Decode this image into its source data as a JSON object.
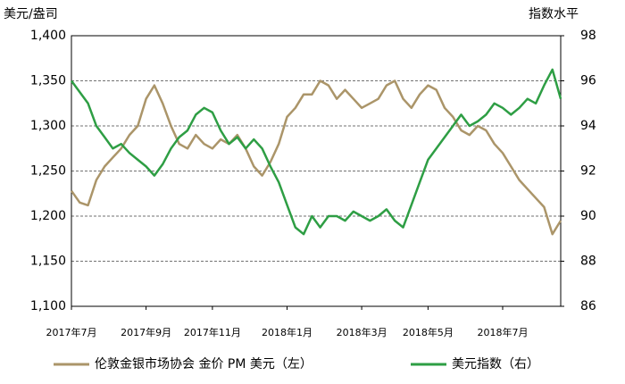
{
  "chart_data": {
    "type": "line",
    "y_label": "美元/盎司",
    "y2_label": "指数水平",
    "categories": [
      "2017年7月",
      null,
      null,
      null,
      null,
      null,
      null,
      null,
      null,
      "2017年9月",
      null,
      null,
      null,
      null,
      null,
      null,
      null,
      "2017年11月",
      null,
      null,
      null,
      null,
      null,
      null,
      null,
      null,
      "2018年1月",
      null,
      null,
      null,
      null,
      null,
      null,
      null,
      null,
      "2018年3月",
      null,
      null,
      null,
      null,
      null,
      null,
      null,
      "2018年5月",
      null,
      null,
      null,
      null,
      null,
      null,
      null,
      null,
      "2018年7月",
      null,
      null,
      null,
      null,
      null,
      null,
      null
    ],
    "series": [
      {
        "name": "伦敦金银市场协会 金价 PM 美元（左）",
        "color": "#ab9569",
        "axis": "y",
        "values": [
          1228,
          1215,
          1212,
          1240,
          1255,
          1265,
          1275,
          1290,
          1300,
          1330,
          1345,
          1325,
          1300,
          1280,
          1275,
          1290,
          1280,
          1275,
          1285,
          1280,
          1290,
          1275,
          1255,
          1245,
          1260,
          1280,
          1310,
          1320,
          1335,
          1335,
          1350,
          1345,
          1330,
          1340,
          1330,
          1320,
          1325,
          1330,
          1345,
          1350,
          1330,
          1320,
          1335,
          1345,
          1340,
          1320,
          1310,
          1295,
          1290,
          1300,
          1295,
          1280,
          1270,
          1255,
          1240,
          1230,
          1220,
          1210,
          1180,
          1195
        ]
      },
      {
        "name": "美元指数（右）",
        "color": "#2e9e44",
        "axis": "y2",
        "values": [
          96,
          95.5,
          95,
          94,
          93.5,
          93,
          93.2,
          92.8,
          92.5,
          92.2,
          91.8,
          92.3,
          93,
          93.5,
          93.8,
          94.5,
          94.8,
          94.6,
          93.8,
          93.2,
          93.5,
          93.0,
          93.4,
          93.0,
          92.2,
          91.5,
          90.5,
          89.5,
          89.2,
          90,
          89.5,
          90.0,
          90.0,
          89.8,
          90.2,
          90.0,
          89.8,
          90.0,
          90.3,
          89.8,
          89.5,
          90.5,
          91.5,
          92.5,
          93.0,
          93.5,
          94.0,
          94.5,
          94.0,
          94.2,
          94.5,
          95.0,
          94.8,
          94.5,
          94.8,
          95.2,
          95.0,
          95.8,
          96.5,
          95.2
        ]
      }
    ],
    "ylim": [
      1100,
      1400
    ],
    "yticks": [
      {
        "value": 1100,
        "label": "1,100"
      },
      {
        "value": 1150,
        "label": "1,150"
      },
      {
        "value": 1200,
        "label": "1,200"
      },
      {
        "value": 1250,
        "label": "1,250"
      },
      {
        "value": 1300,
        "label": "1,300"
      },
      {
        "value": 1350,
        "label": "1,350"
      },
      {
        "value": 1400,
        "label": "1,400"
      }
    ],
    "y2lim": [
      86,
      98
    ],
    "y2ticks": [
      86,
      88,
      90,
      92,
      94,
      96,
      98
    ],
    "grid": true
  }
}
